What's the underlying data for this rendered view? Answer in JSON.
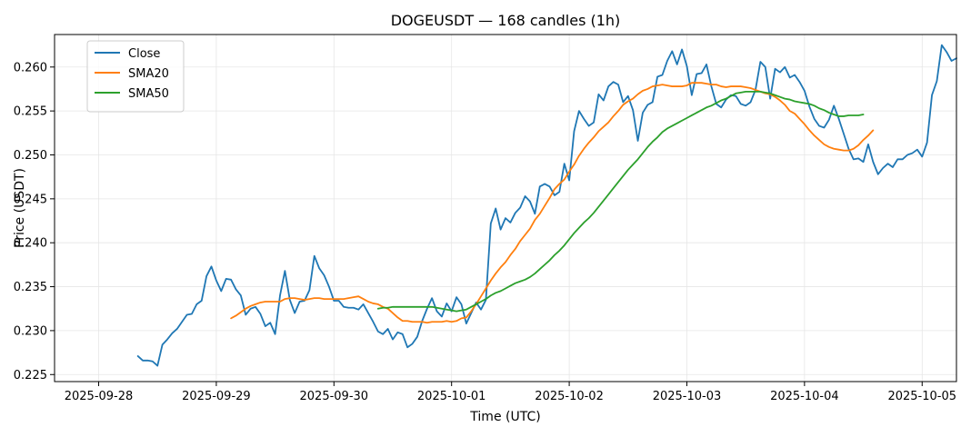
{
  "chart_data": {
    "type": "line",
    "title": "DOGEUSDT — 168 candles (1h)",
    "xlabel": "Time (UTC)",
    "ylabel": "Price (USDT)",
    "grid": true,
    "legend_position": "top-left",
    "xlim": [
      -9,
      175
    ],
    "ylim": [
      0.2242,
      0.2637
    ],
    "x_unit": "hours since 2025-09-28 00:00 UTC",
    "x_ticks": [
      {
        "value": 0,
        "label": "2025-09-28"
      },
      {
        "value": 24,
        "label": "2025-09-29"
      },
      {
        "value": 48,
        "label": "2025-09-30"
      },
      {
        "value": 72,
        "label": "2025-10-01"
      },
      {
        "value": 96,
        "label": "2025-10-02"
      },
      {
        "value": 120,
        "label": "2025-10-03"
      },
      {
        "value": 144,
        "label": "2025-10-04"
      },
      {
        "value": 168,
        "label": "2025-10-05"
      }
    ],
    "y_ticks": [
      {
        "value": 0.225,
        "label": "0.225"
      },
      {
        "value": 0.23,
        "label": "0.230"
      },
      {
        "value": 0.235,
        "label": "0.235"
      },
      {
        "value": 0.24,
        "label": "0.240"
      },
      {
        "value": 0.245,
        "label": "0.245"
      },
      {
        "value": 0.25,
        "label": "0.250"
      },
      {
        "value": 0.255,
        "label": "0.255"
      },
      {
        "value": 0.26,
        "label": "0.260"
      }
    ],
    "series": [
      {
        "name": "Close",
        "color": "#1f77b4",
        "x_start": 8,
        "values": [
          0.2271,
          0.2266,
          0.2266,
          0.2265,
          0.226,
          0.2284,
          0.229,
          0.2297,
          0.2302,
          0.231,
          0.2318,
          0.2319,
          0.233,
          0.2334,
          0.2362,
          0.2373,
          0.2357,
          0.2345,
          0.2359,
          0.2358,
          0.2347,
          0.234,
          0.2318,
          0.2325,
          0.2327,
          0.2319,
          0.2305,
          0.2309,
          0.2296,
          0.234,
          0.2368,
          0.2335,
          0.232,
          0.2333,
          0.2334,
          0.2346,
          0.2385,
          0.2371,
          0.2363,
          0.235,
          0.2334,
          0.2334,
          0.2327,
          0.2326,
          0.2326,
          0.2324,
          0.233,
          0.232,
          0.231,
          0.2299,
          0.2296,
          0.2302,
          0.229,
          0.2298,
          0.2296,
          0.2281,
          0.2285,
          0.2293,
          0.2311,
          0.2325,
          0.2337,
          0.2322,
          0.2316,
          0.2331,
          0.2322,
          0.2338,
          0.233,
          0.2308,
          0.232,
          0.2332,
          0.2324,
          0.2335,
          0.2422,
          0.2439,
          0.2415,
          0.2428,
          0.2423,
          0.2434,
          0.244,
          0.2453,
          0.2447,
          0.2433,
          0.2464,
          0.2467,
          0.2464,
          0.2454,
          0.2458,
          0.249,
          0.2471,
          0.2527,
          0.255,
          0.2541,
          0.2533,
          0.2537,
          0.2569,
          0.2562,
          0.2578,
          0.2583,
          0.258,
          0.256,
          0.2567,
          0.2551,
          0.2516,
          0.2548,
          0.2557,
          0.256,
          0.2589,
          0.2591,
          0.2607,
          0.2618,
          0.2603,
          0.262,
          0.2601,
          0.2568,
          0.2592,
          0.2593,
          0.2603,
          0.2578,
          0.2558,
          0.2554,
          0.2563,
          0.2568,
          0.2567,
          0.2558,
          0.2556,
          0.256,
          0.2574,
          0.2606,
          0.26,
          0.2564,
          0.2598,
          0.2594,
          0.26,
          0.2588,
          0.2591,
          0.2583,
          0.2573,
          0.2555,
          0.2541,
          0.2533,
          0.2531,
          0.254,
          0.2556,
          0.2541,
          0.2524,
          0.2507,
          0.2495,
          0.2496,
          0.2492,
          0.2512,
          0.2492,
          0.2478,
          0.2485,
          0.249,
          0.2486,
          0.2495,
          0.2495,
          0.25,
          0.2502,
          0.2506,
          0.2498,
          0.2514,
          0.2568,
          0.2584,
          0.2625,
          0.2617,
          0.2607,
          0.261
        ]
      },
      {
        "name": "SMA20",
        "color": "#ff7f0e",
        "x_start": 27,
        "values": [
          0.2314,
          0.2317,
          0.2321,
          0.2325,
          0.2328,
          0.233,
          0.2332,
          0.2333,
          0.2333,
          0.2333,
          0.2333,
          0.2336,
          0.2337,
          0.2337,
          0.2336,
          0.2335,
          0.2336,
          0.2337,
          0.2337,
          0.2336,
          0.2336,
          0.2336,
          0.2336,
          0.2336,
          0.2337,
          0.2338,
          0.2339,
          0.2336,
          0.2333,
          0.2331,
          0.233,
          0.2327,
          0.2325,
          0.232,
          0.2315,
          0.2311,
          0.2311,
          0.231,
          0.231,
          0.231,
          0.2309,
          0.231,
          0.231,
          0.231,
          0.2311,
          0.231,
          0.2311,
          0.2314,
          0.2315,
          0.2322,
          0.233,
          0.2339,
          0.2348,
          0.2357,
          0.2365,
          0.2372,
          0.2378,
          0.2386,
          0.2393,
          0.2402,
          0.2409,
          0.2416,
          0.2426,
          0.2433,
          0.2442,
          0.2451,
          0.2461,
          0.2467,
          0.2472,
          0.2481,
          0.2489,
          0.2499,
          0.2507,
          0.2514,
          0.252,
          0.2527,
          0.2532,
          0.2537,
          0.2544,
          0.255,
          0.2557,
          0.2561,
          0.2564,
          0.2569,
          0.2573,
          0.2575,
          0.2578,
          0.2579,
          0.258,
          0.2579,
          0.2578,
          0.2578,
          0.2578,
          0.2579,
          0.2582,
          0.2582,
          0.2582,
          0.2581,
          0.258,
          0.258,
          0.2578,
          0.2577,
          0.2578,
          0.2578,
          0.2578,
          0.2577,
          0.2576,
          0.2574,
          0.2572,
          0.257,
          0.2569,
          0.2566,
          0.2562,
          0.2557,
          0.255,
          0.2547,
          0.2541,
          0.2535,
          0.2528,
          0.2522,
          0.2517,
          0.2512,
          0.2509,
          0.2507,
          0.2506,
          0.2505,
          0.2505,
          0.2507,
          0.2511,
          0.2517,
          0.2522,
          0.2528
        ]
      },
      {
        "name": "SMA50",
        "color": "#2ca02c",
        "x_start": 57,
        "values": [
          0.2325,
          0.2326,
          0.2326,
          0.2327,
          0.2327,
          0.2327,
          0.2327,
          0.2327,
          0.2327,
          0.2327,
          0.2327,
          0.2327,
          0.2326,
          0.2325,
          0.2324,
          0.2323,
          0.2322,
          0.2323,
          0.2324,
          0.2327,
          0.233,
          0.2333,
          0.2336,
          0.234,
          0.2343,
          0.2345,
          0.2348,
          0.2351,
          0.2354,
          0.2356,
          0.2358,
          0.2361,
          0.2365,
          0.237,
          0.2375,
          0.238,
          0.2386,
          0.2391,
          0.2397,
          0.2404,
          0.2411,
          0.2417,
          0.2423,
          0.2428,
          0.2434,
          0.2441,
          0.2448,
          0.2455,
          0.2462,
          0.2469,
          0.2476,
          0.2483,
          0.2489,
          0.2495,
          0.2502,
          0.2509,
          0.2515,
          0.252,
          0.2526,
          0.253,
          0.2533,
          0.2536,
          0.2539,
          0.2542,
          0.2545,
          0.2548,
          0.2551,
          0.2554,
          0.2556,
          0.2559,
          0.2562,
          0.2564,
          0.2567,
          0.257,
          0.2571,
          0.2572,
          0.2572,
          0.2572,
          0.2572,
          0.2571,
          0.257,
          0.2568,
          0.2566,
          0.2564,
          0.2563,
          0.2561,
          0.256,
          0.2559,
          0.2558,
          0.2556,
          0.2553,
          0.2551,
          0.2548,
          0.2546,
          0.2544,
          0.2544,
          0.2545,
          0.2545,
          0.2545,
          0.2546
        ]
      }
    ]
  }
}
